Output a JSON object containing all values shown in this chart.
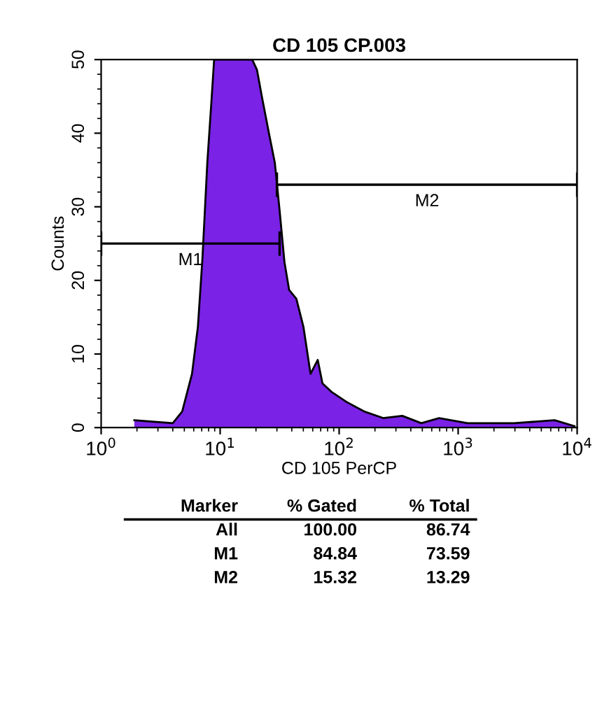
{
  "chart_data": {
    "type": "area",
    "title": "CD 105 CP.003",
    "xlabel": "CD 105 PerCP",
    "ylabel": "Counts",
    "log": "x",
    "xlim": [
      1,
      10000
    ],
    "xticks": [
      {
        "value": 1,
        "label": "10$^{0}$"
      },
      {
        "value": 10,
        "label": "10$^{1}$"
      },
      {
        "value": 100,
        "label": "10$^{2}$"
      },
      {
        "value": 1000,
        "label": "10$^{3}$"
      },
      {
        "value": 10000,
        "label": "10$^{4}$"
      }
    ],
    "ylim": [
      0,
      50
    ],
    "yticks": [
      0,
      10,
      20,
      30,
      40,
      50
    ],
    "grid": false,
    "series": [
      {
        "color": "#7a22e6",
        "x": [
          1.9,
          4.0,
          4.8,
          5.8,
          6.5,
          7.1,
          7.8,
          8.5,
          8.9,
          18.6,
          20.4,
          22.4,
          25.7,
          28.8,
          31.6,
          34.7,
          38.0,
          43.7,
          50.1,
          57.5,
          66.1,
          72.4,
          87.1,
          115,
          162,
          234,
          339,
          490,
          692,
          1200,
          2950,
          6460,
          9500
        ],
        "values": [
          1,
          0.6,
          2.2,
          7.3,
          13.7,
          23,
          36,
          45,
          50,
          50,
          48.6,
          45,
          40,
          36,
          29.5,
          22.5,
          18.7,
          17.5,
          13.7,
          7.3,
          9.2,
          6,
          4.8,
          3.5,
          2.2,
          1.3,
          1.6,
          0.6,
          1.3,
          0.6,
          0.6,
          1,
          0.2
        ]
      },
      {
        "type": "line",
        "name": "M1",
        "color": "#000000",
        "x": [
          1,
          31.6
        ],
        "values": [
          25,
          25
        ]
      },
      {
        "type": "line",
        "name": "M2",
        "color": "#000000",
        "x": [
          30,
          10000
        ],
        "values": [
          33,
          33
        ]
      }
    ],
    "annotations": [
      "Marker",
      "% Gated",
      "% Total",
      "All",
      "100.00",
      "86.74",
      "M1",
      "84.84",
      "73.59",
      "M2",
      "15.32",
      "13.29"
    ]
  }
}
